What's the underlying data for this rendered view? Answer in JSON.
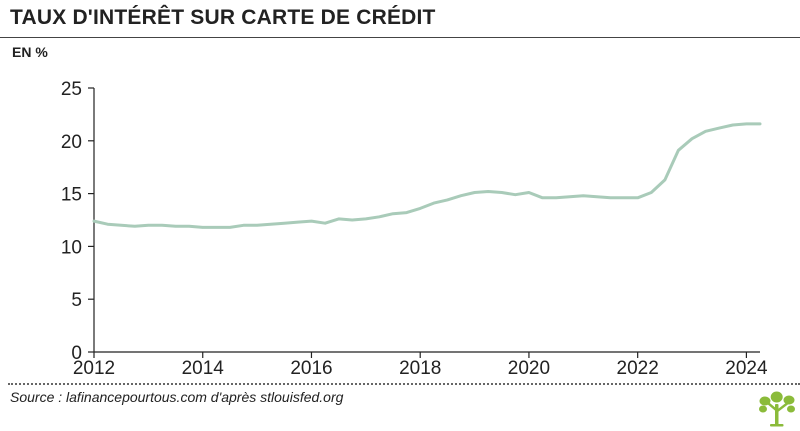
{
  "header": {
    "title": "TAUX D'INTÉRÊT SUR CARTE DE CRÉDIT",
    "unit": "EN %"
  },
  "footer": {
    "source": "Source : lafinancepourtous.com d'après stlouisfed.org"
  },
  "colors": {
    "line": "#a9cbb9",
    "axis": "#222222",
    "logo": "#8bbb3a"
  },
  "icons": {
    "logo": "tree-logo-icon"
  },
  "chart_data": {
    "type": "line",
    "title": "TAUX D'INTÉRÊT SUR CARTE DE CRÉDIT",
    "ylabel": "EN %",
    "xlabel": "",
    "xlim": [
      2012,
      2024.25
    ],
    "ylim": [
      0,
      25
    ],
    "xticks": [
      "2012",
      "2014",
      "2016",
      "2018",
      "2020",
      "2022",
      "2024"
    ],
    "yticks": [
      "0",
      "5",
      "10",
      "15",
      "20",
      "25"
    ],
    "grid": false,
    "legend": "none",
    "series": [
      {
        "name": "",
        "x": [
          2012.0,
          2012.25,
          2012.5,
          2012.75,
          2013.0,
          2013.25,
          2013.5,
          2013.75,
          2014.0,
          2014.25,
          2014.5,
          2014.75,
          2015.0,
          2015.25,
          2015.5,
          2015.75,
          2016.0,
          2016.25,
          2016.5,
          2016.75,
          2017.0,
          2017.25,
          2017.5,
          2017.75,
          2018.0,
          2018.25,
          2018.5,
          2018.75,
          2019.0,
          2019.25,
          2019.5,
          2019.75,
          2020.0,
          2020.25,
          2020.5,
          2020.75,
          2021.0,
          2021.25,
          2021.5,
          2021.75,
          2022.0,
          2022.25,
          2022.5,
          2022.75,
          2023.0,
          2023.25,
          2023.5,
          2023.75,
          2024.0,
          2024.25
        ],
        "values": [
          12.4,
          12.1,
          12.0,
          11.9,
          12.0,
          12.0,
          11.9,
          11.9,
          11.8,
          11.8,
          11.8,
          12.0,
          12.0,
          12.1,
          12.2,
          12.3,
          12.4,
          12.2,
          12.6,
          12.5,
          12.6,
          12.8,
          13.1,
          13.2,
          13.6,
          14.1,
          14.4,
          14.8,
          15.1,
          15.2,
          15.1,
          14.9,
          15.1,
          14.6,
          14.6,
          14.7,
          14.8,
          14.7,
          14.6,
          14.6,
          14.6,
          15.1,
          16.3,
          19.1,
          20.2,
          20.9,
          21.2,
          21.5,
          21.6,
          21.6
        ]
      }
    ]
  }
}
